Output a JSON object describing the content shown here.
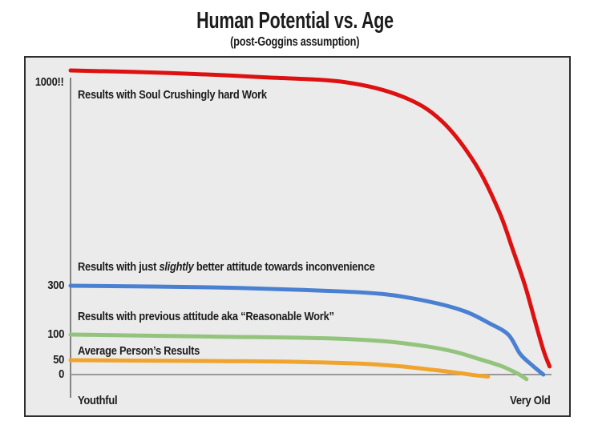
{
  "chart_data": {
    "type": "line",
    "title": "Human Potential vs. Age",
    "subtitle": "(post-Goggins assumption)",
    "x_axis": {
      "labels": [
        "Youthful",
        "Very Old"
      ],
      "range": [
        0,
        100
      ],
      "description": "qualitative age axis from Youthful to Very Old"
    },
    "y_axis": {
      "ticks": [
        "1000!!",
        "300",
        "100",
        "50",
        "0"
      ],
      "tick_values": [
        1000,
        300,
        100,
        50,
        0
      ],
      "scale": "nonlinear-qualitative",
      "scale_anchors": [
        [
          0,
          0
        ],
        [
          50,
          0.0474
        ],
        [
          100,
          0.1316
        ],
        [
          300,
          0.2921
        ],
        [
          1000,
          1.0
        ]
      ]
    },
    "grid": false,
    "legend": "inline-curve-labels",
    "stroke_width": 5,
    "colors": {
      "plot_background": "#ebebeb",
      "page_background": "#ffffff",
      "border": "#2e2e2e",
      "axis_line": "#6b6b6b",
      "zero_line": "#999999",
      "text": "#1c1c1c"
    },
    "series": [
      {
        "name": "Results with Soul Crushingly hard Work",
        "color": "#dd1111",
        "start_value": 1000,
        "points": [
          [
            0,
            1000
          ],
          [
            20,
            992
          ],
          [
            40,
            978
          ],
          [
            57,
            962
          ],
          [
            69,
            915
          ],
          [
            77,
            838
          ],
          [
            84,
            700
          ],
          [
            89,
            545
          ],
          [
            92,
            415
          ],
          [
            94.5,
            300
          ],
          [
            96.5,
            160
          ],
          [
            98.3,
            70
          ],
          [
            99.6,
            28
          ]
        ]
      },
      {
        "name": "Results with just slightly better attitude towards inconvenience",
        "label_parts": {
          "prefix": "Results with just ",
          "italic": "slightly",
          "suffix": " better attitude towards inconvenience"
        },
        "color": "#4a80d2",
        "start_value": 300,
        "points": [
          [
            0,
            300
          ],
          [
            30,
            293
          ],
          [
            52,
            280
          ],
          [
            65,
            266
          ],
          [
            75,
            233
          ],
          [
            82,
            195
          ],
          [
            87,
            147
          ],
          [
            91,
            100
          ],
          [
            93.5,
            62
          ],
          [
            96,
            32
          ],
          [
            98.3,
            0
          ]
        ]
      },
      {
        "name": "Results with previous attitude aka “Reasonable Work”",
        "color": "#93c47d",
        "start_value": 100,
        "points": [
          [
            0,
            100
          ],
          [
            30,
            96
          ],
          [
            52,
            93
          ],
          [
            65,
            87
          ],
          [
            74,
            77
          ],
          [
            80,
            66
          ],
          [
            85,
            52
          ],
          [
            89.5,
            30
          ],
          [
            93,
            3
          ],
          [
            94.8,
            -16
          ]
        ]
      },
      {
        "name": "Average Person’s Results",
        "color": "#f0a42e",
        "start_value": 50,
        "points": [
          [
            0,
            50
          ],
          [
            30,
            47
          ],
          [
            44,
            45
          ],
          [
            60,
            38
          ],
          [
            69,
            28
          ],
          [
            75,
            17
          ],
          [
            80,
            7
          ],
          [
            84,
            -2
          ],
          [
            86.8,
            -7
          ]
        ]
      }
    ]
  }
}
